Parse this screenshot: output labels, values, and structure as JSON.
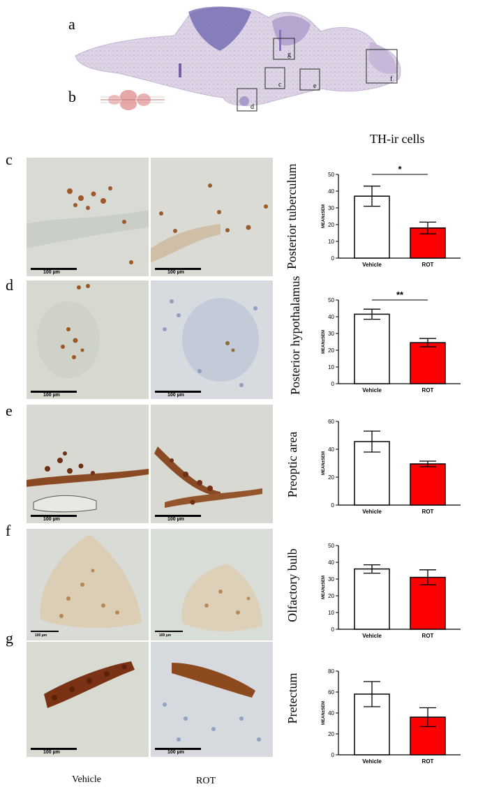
{
  "panels": {
    "a": "a",
    "b": "b",
    "c": "c",
    "d": "d",
    "e": "e",
    "f": "f",
    "g": "g"
  },
  "overview_boxes": [
    "g",
    "c",
    "e",
    "f",
    "d"
  ],
  "figure_title": "TH-ir cells",
  "column_labels": {
    "vehicle": "Vehicle",
    "rot": "ROT"
  },
  "scale_labels": [
    "100 µm",
    "100 µm",
    "100 µm",
    "100 µm",
    "100 µm",
    "100 µm",
    "100 µm",
    "100 µm",
    "100 µm",
    "100 µm"
  ],
  "regions": [
    "Posterior tuberculum",
    "Posterior hypothalamus",
    "Preoptic area",
    "Olfactory bulb",
    "Pretectum"
  ],
  "colors": {
    "vehicle_bar": "#ffffff",
    "rot_bar": "#ff0000",
    "stain": "#8b4513"
  },
  "chart_data": [
    {
      "type": "bar",
      "region": "Posterior tuberculum",
      "categories": [
        "Vehicle",
        "ROT"
      ],
      "values": [
        37,
        18
      ],
      "error": [
        6,
        3.5
      ],
      "ylabel": "MEAN±SEM",
      "ylim": [
        0,
        50
      ],
      "yticks": [
        0,
        10,
        20,
        30,
        40,
        50
      ],
      "significance": "*"
    },
    {
      "type": "bar",
      "region": "Posterior hypothalamus",
      "categories": [
        "Vehicle",
        "ROT"
      ],
      "values": [
        41.5,
        24.5
      ],
      "error": [
        3,
        2.5
      ],
      "ylabel": "MEAN±SEM",
      "ylim": [
        0,
        50
      ],
      "yticks": [
        0,
        10,
        20,
        30,
        40,
        50
      ],
      "significance": "**"
    },
    {
      "type": "bar",
      "region": "Preoptic area",
      "categories": [
        "Vehicle",
        "ROT"
      ],
      "values": [
        45.5,
        29.5
      ],
      "error": [
        7.5,
        2
      ],
      "ylabel": "MEAN±SEM",
      "ylim": [
        0,
        60
      ],
      "yticks": [
        0,
        20,
        40,
        60
      ],
      "significance": ""
    },
    {
      "type": "bar",
      "region": "Olfactory bulb",
      "categories": [
        "Vehicle",
        "ROT"
      ],
      "values": [
        36,
        31
      ],
      "error": [
        2.5,
        4.5
      ],
      "ylabel": "MEAN±SEM",
      "ylim": [
        0,
        50
      ],
      "yticks": [
        0,
        10,
        20,
        30,
        40,
        50
      ],
      "significance": ""
    },
    {
      "type": "bar",
      "region": "Pretectum",
      "categories": [
        "Vehicle",
        "ROT"
      ],
      "values": [
        58,
        36
      ],
      "error": [
        12,
        9
      ],
      "ylabel": "MEAN±SEM",
      "ylim": [
        0,
        80
      ],
      "yticks": [
        0,
        20,
        40,
        60,
        80
      ],
      "significance": ""
    }
  ]
}
